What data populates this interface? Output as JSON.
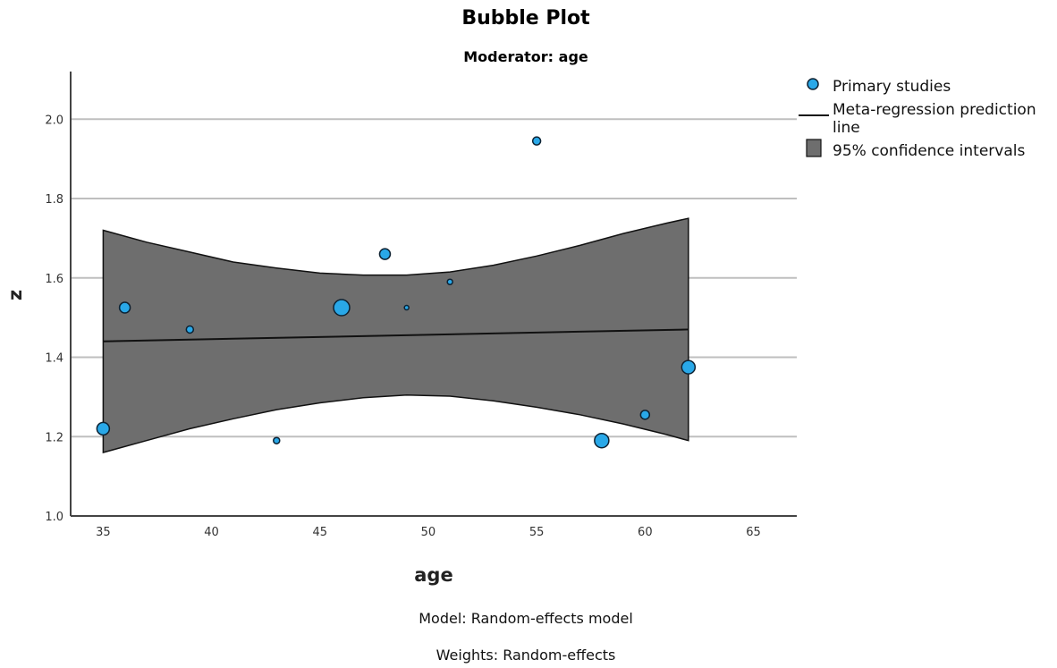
{
  "chart_data": {
    "type": "scatter",
    "title": "Bubble Plot",
    "subtitle": "Moderator: age",
    "xlabel": "age",
    "ylabel": "z",
    "xlim": [
      33.5,
      67
    ],
    "ylim": [
      1.0,
      2.12
    ],
    "xticks": [
      35,
      40,
      45,
      50,
      55,
      60,
      65
    ],
    "yticks": [
      1.0,
      1.2,
      1.4,
      1.6,
      1.8,
      2.0
    ],
    "grid": "horizontal",
    "legend_position": "top-right",
    "legend": [
      {
        "label": "Primary studies",
        "kind": "marker"
      },
      {
        "label": "Meta-regression prediction line",
        "kind": "line"
      },
      {
        "label": "95% confidence intervals",
        "kind": "band"
      }
    ],
    "series": [
      {
        "name": "Primary studies",
        "points": [
          {
            "x": 35,
            "y": 1.22,
            "weight": 7
          },
          {
            "x": 36,
            "y": 1.525,
            "weight": 6
          },
          {
            "x": 39,
            "y": 1.47,
            "weight": 4
          },
          {
            "x": 43,
            "y": 1.19,
            "weight": 3.5
          },
          {
            "x": 46,
            "y": 1.525,
            "weight": 9
          },
          {
            "x": 48,
            "y": 1.66,
            "weight": 6
          },
          {
            "x": 49,
            "y": 1.525,
            "weight": 2.5
          },
          {
            "x": 51,
            "y": 1.59,
            "weight": 3
          },
          {
            "x": 55,
            "y": 1.945,
            "weight": 4.5
          },
          {
            "x": 58,
            "y": 1.19,
            "weight": 8
          },
          {
            "x": 60,
            "y": 1.255,
            "weight": 5
          },
          {
            "x": 62,
            "y": 1.375,
            "weight": 7.5
          }
        ]
      },
      {
        "name": "Meta-regression prediction line",
        "x": [
          35,
          62
        ],
        "y": [
          1.44,
          1.47
        ]
      },
      {
        "name": "95% confidence intervals",
        "x": [
          35,
          37,
          39,
          41,
          43,
          45,
          47,
          49,
          51,
          53,
          55,
          57,
          59,
          61,
          62
        ],
        "upper": [
          1.72,
          1.69,
          1.665,
          1.64,
          1.625,
          1.612,
          1.607,
          1.607,
          1.615,
          1.632,
          1.655,
          1.682,
          1.712,
          1.738,
          1.75
        ],
        "lower": [
          1.16,
          1.19,
          1.22,
          1.245,
          1.268,
          1.285,
          1.298,
          1.305,
          1.302,
          1.29,
          1.274,
          1.255,
          1.232,
          1.205,
          1.19
        ]
      }
    ],
    "colors": {
      "marker_fill": "#29a8e8",
      "marker_stroke": "#0d2233",
      "band_fill": "#6e6e6e",
      "band_stroke": "#111111",
      "line": "#111111",
      "grid": "#bfbfbf",
      "axis": "#444444"
    },
    "footnotes": [
      "Model: Random-effects model",
      "Weights: Random-effects"
    ]
  }
}
